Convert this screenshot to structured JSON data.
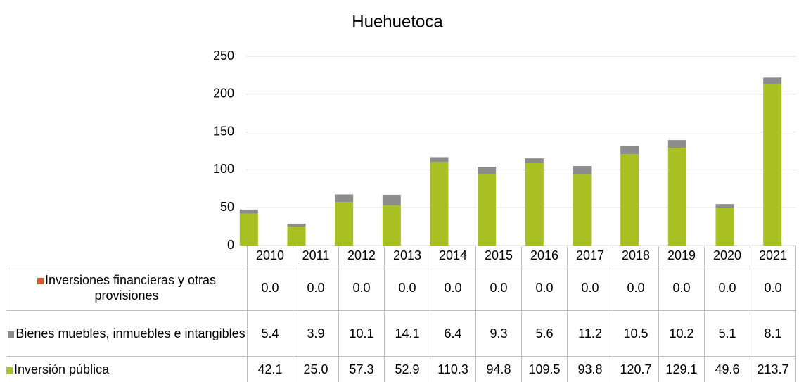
{
  "chart_data": {
    "type": "bar",
    "stacked": true,
    "title": "Huehuetoca",
    "categories": [
      "2010",
      "2011",
      "2012",
      "2013",
      "2014",
      "2015",
      "2016",
      "2017",
      "2018",
      "2019",
      "2020",
      "2021"
    ],
    "series": [
      {
        "name": "Inversiones financieras y otras provisiones",
        "color": "#e0582a",
        "values": [
          0,
          0,
          0,
          0,
          0,
          0,
          0,
          0,
          0,
          0,
          0,
          0
        ],
        "value_labels": [
          "0.0",
          "0.0",
          "0.0",
          "0.0",
          "0.0",
          "0.0",
          "0.0",
          "0.0",
          "0.0",
          "0.0",
          "0.0",
          "0.0"
        ]
      },
      {
        "name": "Bienes muebles, inmuebles e intangibles",
        "color": "#8c8c8c",
        "values": [
          5.4,
          3.9,
          10.1,
          14.1,
          6.4,
          9.3,
          5.6,
          11.2,
          10.5,
          10.2,
          5.1,
          8.1
        ],
        "value_labels": [
          "5.4",
          "3.9",
          "10.1",
          "14.1",
          "6.4",
          "9.3",
          "5.6",
          "11.2",
          "10.5",
          "10.2",
          "5.1",
          "8.1"
        ]
      },
      {
        "name": "Inversión pública",
        "color": "#a9c023",
        "values": [
          42.1,
          25,
          57.3,
          52.9,
          110.3,
          94.8,
          109.5,
          93.8,
          120.7,
          129.1,
          49.6,
          213.7
        ],
        "value_labels": [
          "42.1",
          "25.0",
          "57.3",
          "52.9",
          "110.3",
          "94.8",
          "109.5",
          "93.8",
          "120.7",
          "129.1",
          "49.6",
          "213.7"
        ]
      }
    ],
    "ylim": [
      0,
      250
    ],
    "yticks": [
      0,
      50,
      100,
      150,
      200,
      250
    ],
    "grid": true
  }
}
